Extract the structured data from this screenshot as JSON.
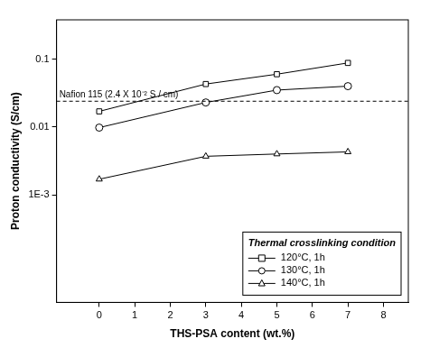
{
  "chart_data": {
    "type": "line",
    "x_label": "THS-PSA content (wt.%)",
    "y_label": "Proton conductivity (S/cm)",
    "x": [
      0,
      3,
      5,
      7
    ],
    "series": [
      {
        "name": "120°C, 1h",
        "color": "#000000",
        "marker": "square",
        "values": [
          0.017,
          0.043,
          0.06,
          0.088
        ]
      },
      {
        "name": "130°C, 1h",
        "color": "#000000",
        "marker": "circle",
        "values": [
          0.0098,
          0.023,
          0.035,
          0.04
        ]
      },
      {
        "name": "140°C, 1h",
        "color": "#000000",
        "marker": "triangle",
        "values": [
          0.0017,
          0.0037,
          0.004,
          0.0043
        ]
      }
    ],
    "xlim": [
      -1.2,
      8.7
    ],
    "xticks": [
      0,
      1,
      2,
      3,
      4,
      5,
      6,
      7,
      8
    ],
    "log": "y",
    "ylim": [
      2.6e-05,
      0.38
    ],
    "yticks": [
      {
        "value": 0.001,
        "label": "1E-3"
      },
      0.01,
      0.1
    ],
    "grid": false,
    "legend": "lower right",
    "legend_title": "Thermal crosslinking condition",
    "annotations": [
      {
        "text": "Nafion 115 (2.4 X 10⁻² S / cm)",
        "y": 0.024,
        "line_style": "dashed"
      }
    ]
  }
}
